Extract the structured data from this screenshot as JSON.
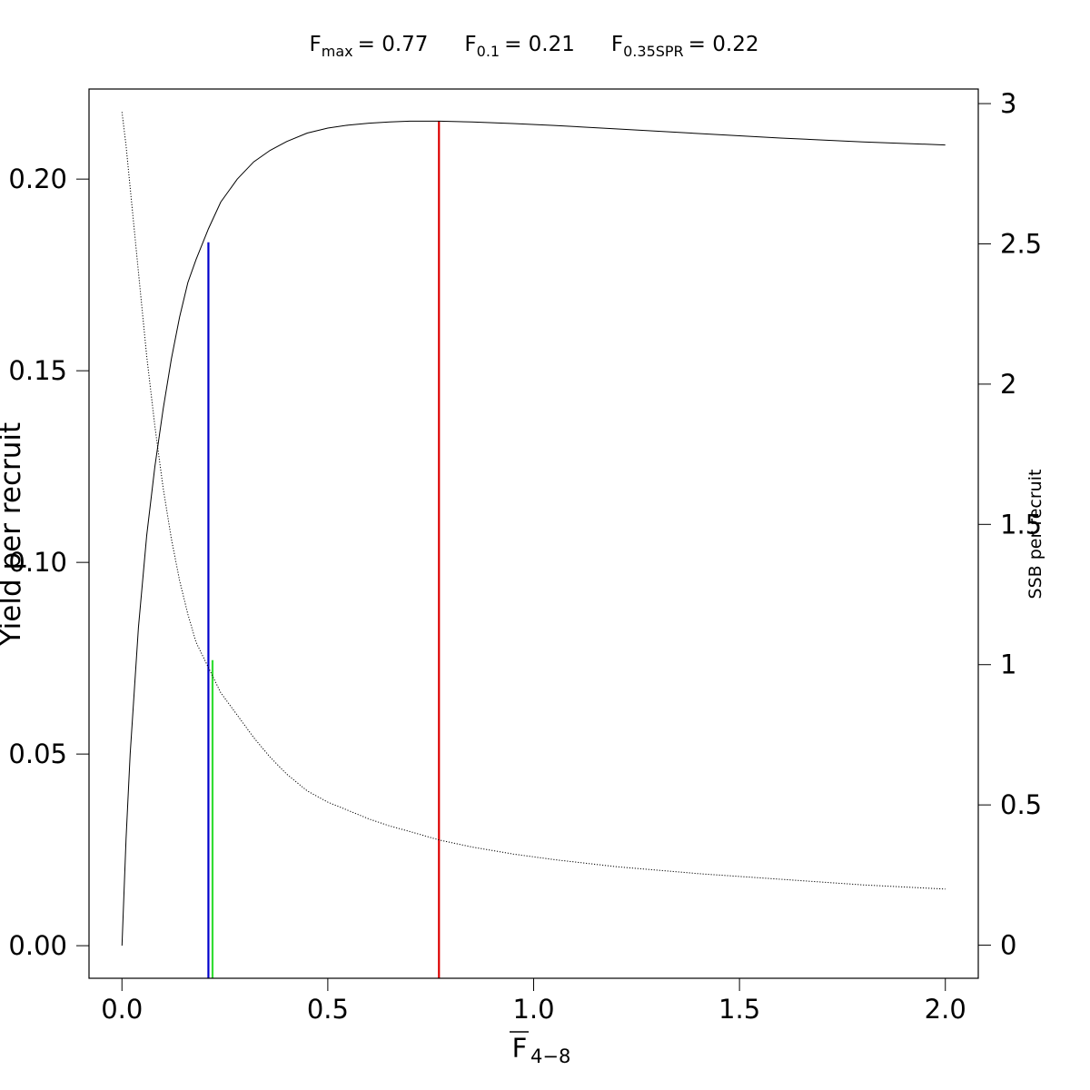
{
  "chart_data": {
    "type": "line",
    "title": {
      "items": [
        {
          "symbol": "F",
          "subscript": "max",
          "value": "= 0.77"
        },
        {
          "symbol": "F",
          "subscript": "0.1",
          "value": "= 0.21"
        },
        {
          "symbol": "F",
          "subscript": "0.35SPR",
          "value": "= 0.22"
        }
      ]
    },
    "xlabel": {
      "symbol": "F",
      "subscript": "4−8",
      "overline": true
    },
    "ylabel_left": "Yield per recruit",
    "ylabel_right": "SSB per recruit",
    "xlim": [
      -0.08,
      2.08
    ],
    "ylim_left": [
      -0.0085,
      0.2235
    ],
    "ylim_right": [
      -0.118,
      3.052
    ],
    "x_ticks": [
      "0.0",
      "0.5",
      "1.0",
      "1.5",
      "2.0"
    ],
    "y_left_ticks": [
      "0.00",
      "0.05",
      "0.10",
      "0.15",
      "0.20"
    ],
    "y_right_ticks": [
      "0",
      "0.5",
      "1",
      "1.5",
      "2",
      "2.5",
      "3"
    ],
    "series": [
      {
        "axis": "left",
        "style": "solid",
        "color": "#000000",
        "x": [
          0,
          0.01,
          0.02,
          0.04,
          0.06,
          0.08,
          0.1,
          0.12,
          0.14,
          0.16,
          0.18,
          0.21,
          0.24,
          0.28,
          0.32,
          0.36,
          0.4,
          0.45,
          0.5,
          0.55,
          0.6,
          0.65,
          0.7,
          0.77,
          0.85,
          0.95,
          1.05,
          1.2,
          1.4,
          1.6,
          1.8,
          2.0
        ],
        "y": [
          0.0,
          0.028,
          0.05,
          0.083,
          0.107,
          0.125,
          0.14,
          0.153,
          0.164,
          0.173,
          0.179,
          0.187,
          0.194,
          0.2,
          0.2045,
          0.2075,
          0.2098,
          0.212,
          0.2133,
          0.2141,
          0.2146,
          0.2149,
          0.2151,
          0.2151,
          0.2149,
          0.2145,
          0.214,
          0.2131,
          0.2119,
          0.2107,
          0.2097,
          0.2089
        ]
      },
      {
        "axis": "right",
        "style": "dotted",
        "color": "#000000",
        "x": [
          0,
          0.01,
          0.02,
          0.04,
          0.06,
          0.08,
          0.1,
          0.12,
          0.14,
          0.16,
          0.18,
          0.21,
          0.24,
          0.28,
          0.32,
          0.36,
          0.4,
          0.45,
          0.5,
          0.55,
          0.6,
          0.65,
          0.7,
          0.77,
          0.85,
          0.95,
          1.05,
          1.2,
          1.4,
          1.6,
          1.8,
          2.0
        ],
        "y": [
          2.97,
          2.85,
          2.7,
          2.4,
          2.1,
          1.85,
          1.63,
          1.45,
          1.3,
          1.18,
          1.08,
          0.99,
          0.9,
          0.82,
          0.74,
          0.67,
          0.61,
          0.55,
          0.51,
          0.48,
          0.45,
          0.425,
          0.405,
          0.375,
          0.35,
          0.325,
          0.305,
          0.28,
          0.255,
          0.235,
          0.215,
          0.2
        ]
      }
    ],
    "reference_lines": [
      {
        "label": "F0.1",
        "x": 0.21,
        "y_top_left_axis": 0.1835,
        "color": "#0000cc"
      },
      {
        "label": "F0.35SPR",
        "x": 0.22,
        "y_top_left_axis": 0.0745,
        "color": "#33dd33"
      },
      {
        "label": "Fmax",
        "x": 0.77,
        "y_top_left_axis": 0.2152,
        "color": "#dd0000"
      }
    ]
  }
}
